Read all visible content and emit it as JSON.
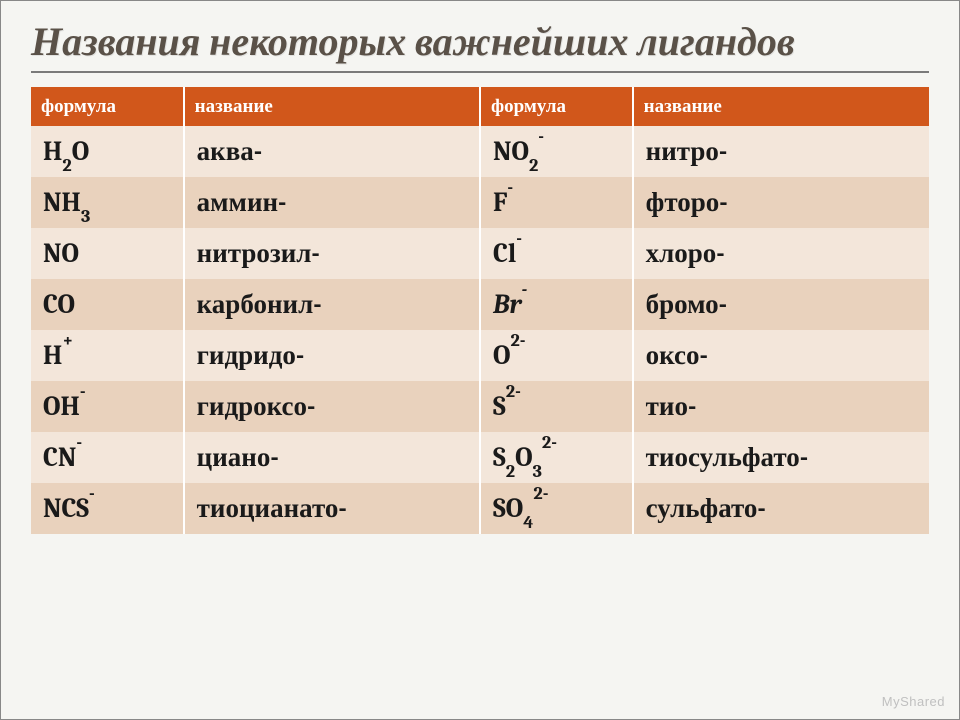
{
  "title_color": "#5a5148",
  "title": "Названия некоторых важнейших лигандов",
  "table": {
    "header_bg": "#d1571b",
    "row_even_bg": "#f3e6da",
    "row_odd_bg": "#e9d2bd",
    "text_color": "#1a1a1a",
    "col_widths": [
      "17%",
      "33%",
      "17%",
      "33%"
    ],
    "columns": [
      "формула",
      "название",
      "формула",
      "название"
    ],
    "rows": [
      {
        "f1": {
          "txt": "H2O",
          "sub": [
            1
          ],
          "sup": []
        },
        "n1": "аква-",
        "f2": {
          "txt": "NO2-",
          "sub": [
            2
          ],
          "sup": [
            3
          ]
        },
        "n2": "нитро-"
      },
      {
        "f1": {
          "txt": "NH3",
          "sub": [
            2
          ],
          "sup": []
        },
        "n1": "аммин-",
        "f2": {
          "txt": "F-",
          "sub": [],
          "sup": [
            1
          ]
        },
        "n2": "фторо-"
      },
      {
        "f1": {
          "txt": "NO",
          "sub": [],
          "sup": []
        },
        "n1": "нитрозил-",
        "f2": {
          "txt": "Cl-",
          "sub": [],
          "sup": [
            2
          ]
        },
        "n2": "хлоро-"
      },
      {
        "f1": {
          "txt": "CO",
          "sub": [],
          "sup": []
        },
        "n1": "карбонил-",
        "f2": {
          "txt": "Br-",
          "sub": [],
          "sup": [
            2
          ],
          "ital": true
        },
        "n2": "бромо-"
      },
      {
        "f1": {
          "txt": "H+",
          "sub": [],
          "sup": [
            1
          ]
        },
        "n1": "гидридо-",
        "f2": {
          "txt": "O2-",
          "sub": [],
          "sup": [
            1,
            2
          ]
        },
        "n2": "оксо-"
      },
      {
        "f1": {
          "txt": "OH-",
          "sub": [],
          "sup": [
            2
          ]
        },
        "n1": "гидроксо-",
        "f2": {
          "txt": "S2-",
          "sub": [],
          "sup": [
            1,
            2
          ]
        },
        "n2": "тио-"
      },
      {
        "f1": {
          "txt": "CN-",
          "sub": [],
          "sup": [
            2
          ]
        },
        "n1": "циано-",
        "f2": {
          "txt": "S2O32-",
          "sub": [
            1,
            3
          ],
          "sup": [
            4,
            5
          ]
        },
        "n2": "тиосульфато-"
      },
      {
        "f1": {
          "txt": "NCS-",
          "sub": [],
          "sup": [
            3
          ]
        },
        "n1": "тиоцианато-",
        "f2": {
          "txt": "SO42-",
          "sub": [
            2
          ],
          "sup": [
            3,
            4
          ]
        },
        "n2": "сульфато-"
      }
    ]
  },
  "watermark": "MyShared"
}
